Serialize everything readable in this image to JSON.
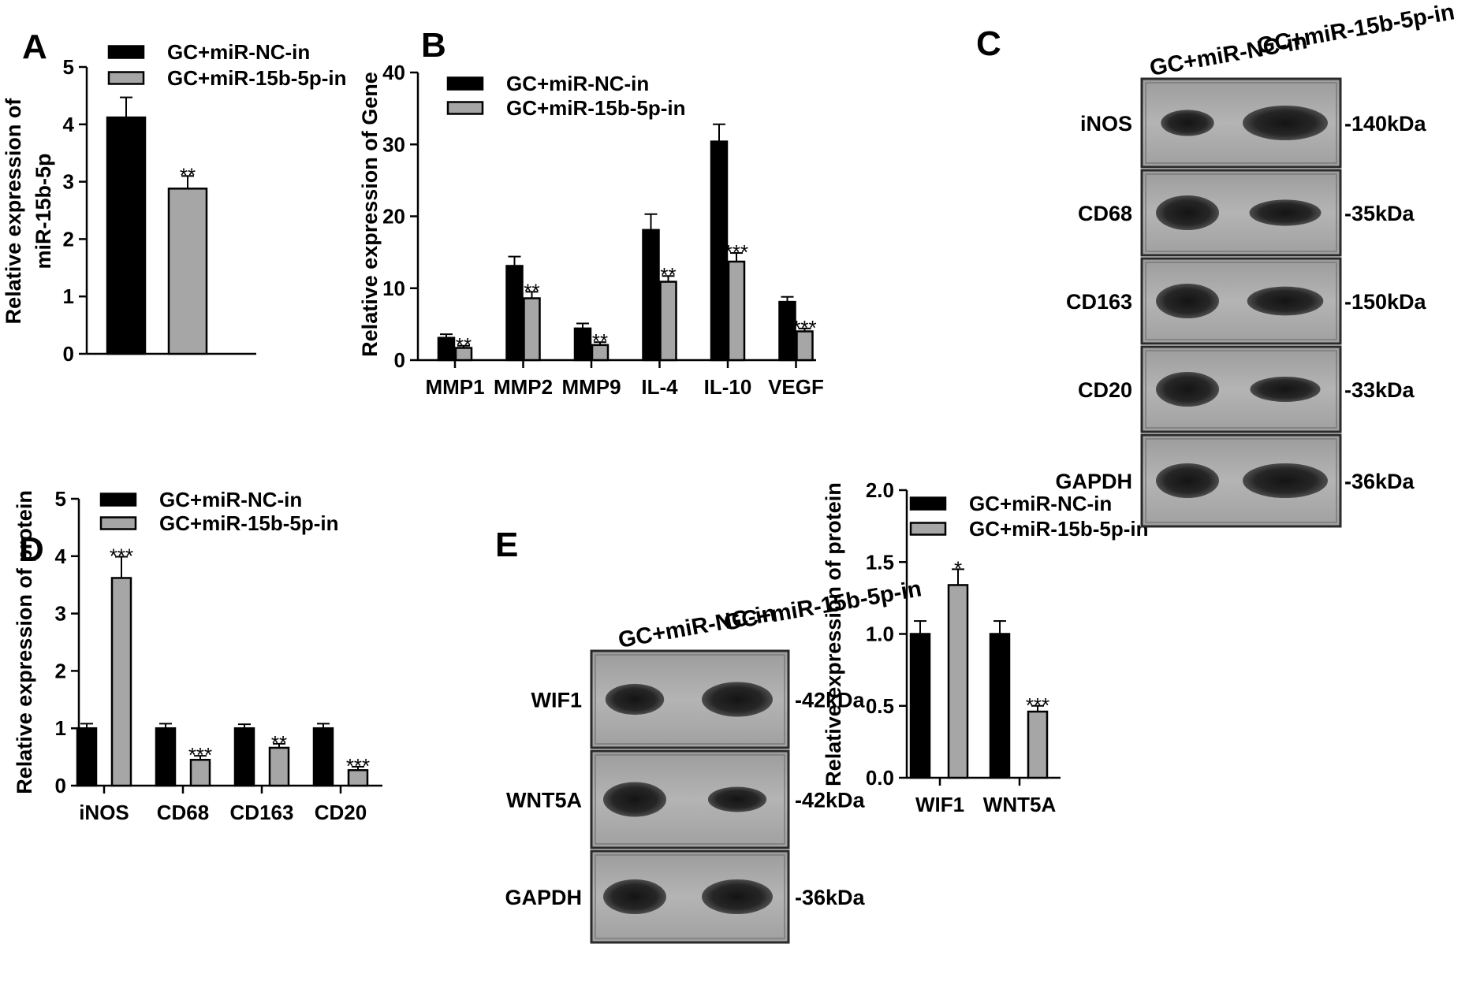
{
  "colors": {
    "nc": "#000000",
    "mir": "#a6a6a6",
    "stroke": "#000000"
  },
  "legend": {
    "nc": "GC+miR-NC-in",
    "mir": "GC+miR-15b-5p-in"
  },
  "panels": {
    "A": "A",
    "B": "B",
    "C": "C",
    "D": "D",
    "E": "E"
  },
  "chart_data": [
    {
      "id": "A",
      "type": "bar",
      "ylabel": [
        "Relative expression of",
        "miR-15b-5p"
      ],
      "ylim": [
        0,
        5
      ],
      "yticks": [
        "0",
        "1",
        "2",
        "3",
        "4",
        "5"
      ],
      "categories": [
        ""
      ],
      "series": [
        {
          "name": "GC+miR-NC-in",
          "values": [
            4.12
          ],
          "errors": [
            0.35
          ],
          "sig": [
            ""
          ]
        },
        {
          "name": "GC+miR-15b-5p-in",
          "values": [
            2.88
          ],
          "errors": [
            0.22
          ],
          "sig": [
            "**"
          ]
        }
      ]
    },
    {
      "id": "B",
      "type": "bar",
      "ylabel": [
        "Relative expression of Gene"
      ],
      "ylim": [
        0,
        40
      ],
      "yticks": [
        "0",
        "10",
        "20",
        "30",
        "40"
      ],
      "categories": [
        "MMP1",
        "MMP2",
        "MMP9",
        "IL-4",
        "IL-10",
        "VEGF"
      ],
      "series": [
        {
          "name": "GC+miR-NC-in",
          "values": [
            3.1,
            13.1,
            4.4,
            18.1,
            30.4,
            8.1
          ],
          "errors": [
            0.5,
            1.3,
            0.7,
            2.2,
            2.4,
            0.7
          ],
          "sig": [
            "",
            "",
            "",
            "",
            "",
            ""
          ]
        },
        {
          "name": "GC+miR-15b-5p-in",
          "values": [
            1.7,
            8.6,
            2.1,
            10.9,
            13.7,
            4.0
          ],
          "errors": [
            0.3,
            0.9,
            0.4,
            0.8,
            1.2,
            0.4
          ],
          "sig": [
            "**",
            "**",
            "**",
            "**",
            "***",
            "***"
          ]
        }
      ]
    },
    {
      "id": "D",
      "type": "bar",
      "ylabel": [
        "Relative expression of protein"
      ],
      "ylim": [
        0,
        5
      ],
      "yticks": [
        "0",
        "1",
        "2",
        "3",
        "4",
        "5"
      ],
      "categories": [
        "iNOS",
        "CD68",
        "CD163",
        "CD20"
      ],
      "series": [
        {
          "name": "GC+miR-NC-in",
          "values": [
            1.0,
            1.0,
            1.0,
            1.0
          ],
          "errors": [
            0.08,
            0.08,
            0.07,
            0.08
          ],
          "sig": [
            "",
            "",
            "",
            ""
          ]
        },
        {
          "name": "GC+miR-15b-5p-in",
          "values": [
            3.62,
            0.45,
            0.66,
            0.27
          ],
          "errors": [
            0.37,
            0.07,
            0.07,
            0.06
          ],
          "sig": [
            "***",
            "***",
            "**",
            "***"
          ]
        }
      ]
    },
    {
      "id": "E",
      "type": "bar",
      "ylabel": [
        "Relative expression of protein"
      ],
      "ylim": [
        0,
        2.0
      ],
      "yticks": [
        "0.0",
        "0.5",
        "1.0",
        "1.5",
        "2.0"
      ],
      "categories": [
        "WIF1",
        "WNT5A"
      ],
      "series": [
        {
          "name": "GC+miR-NC-in",
          "values": [
            1.0,
            1.0
          ],
          "errors": [
            0.09,
            0.09
          ],
          "sig": [
            "",
            ""
          ]
        },
        {
          "name": "GC+miR-15b-5p-in",
          "values": [
            1.34,
            0.46
          ],
          "errors": [
            0.11,
            0.04
          ],
          "sig": [
            "*",
            "***"
          ]
        }
      ]
    }
  ],
  "blots": {
    "C": {
      "lanes": [
        "GC+miR-NC-in",
        "GC+miR-15b-5p-in"
      ],
      "rows": [
        {
          "protein": "iNOS",
          "kda": "-140kDa",
          "intensity": [
            0.55,
            1.0
          ]
        },
        {
          "protein": "CD68",
          "kda": "-35kDa",
          "intensity": [
            1.0,
            0.55
          ]
        },
        {
          "protein": "CD163",
          "kda": "-150kDa",
          "intensity": [
            1.0,
            0.7
          ]
        },
        {
          "protein": "CD20",
          "kda": "-33kDa",
          "intensity": [
            1.0,
            0.5
          ]
        },
        {
          "protein": "GAPDH",
          "kda": "-36kDa",
          "intensity": [
            1.0,
            1.0
          ]
        }
      ]
    },
    "E": {
      "lanes": [
        "GC+miR-NC-in",
        "GC+miR-15b-5p-in"
      ],
      "rows": [
        {
          "protein": "WIF1",
          "kda": "-42kDa",
          "intensity": [
            0.8,
            1.0
          ]
        },
        {
          "protein": "WNT5A",
          "kda": "-42kDa",
          "intensity": [
            1.0,
            0.5
          ]
        },
        {
          "protein": "GAPDH",
          "kda": "-36kDa",
          "intensity": [
            1.0,
            1.0
          ]
        }
      ]
    }
  }
}
